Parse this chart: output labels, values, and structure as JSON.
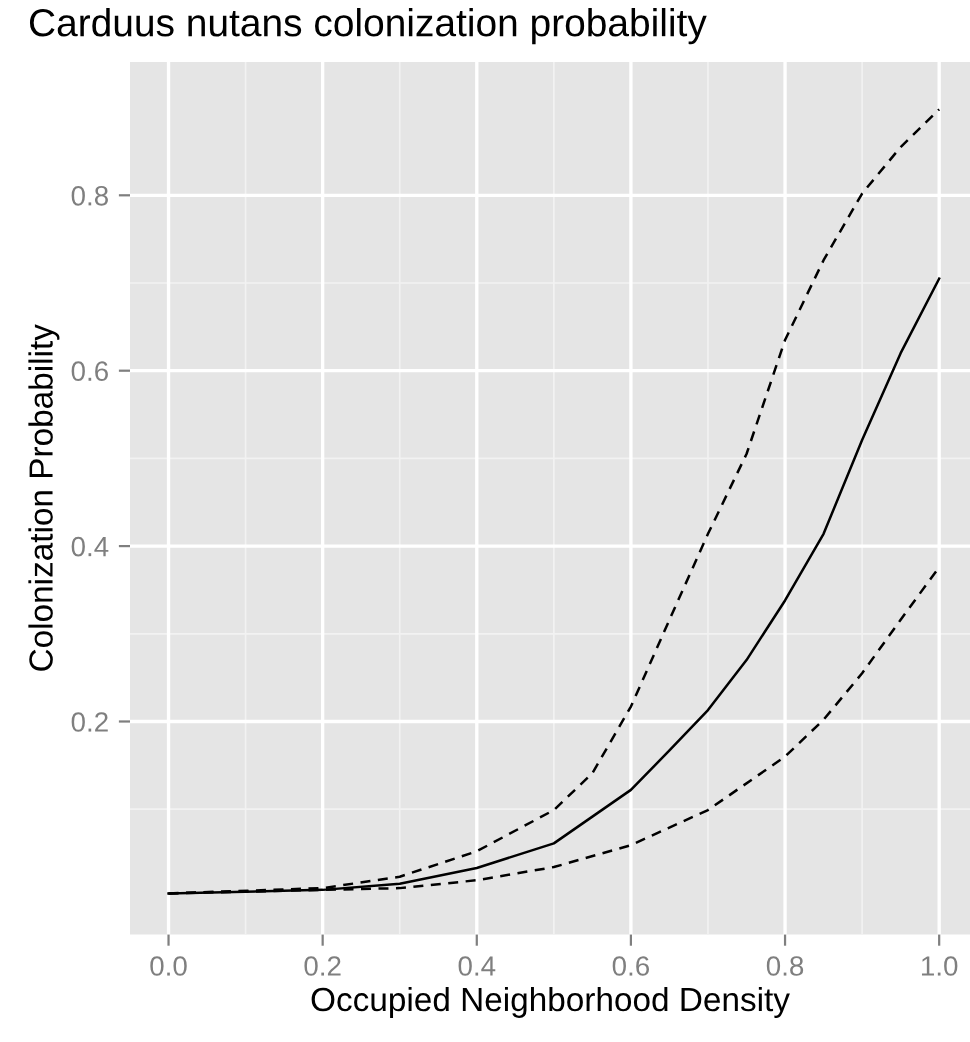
{
  "chart_data": {
    "type": "line",
    "title": "Carduus nutans colonization probability",
    "xlabel": "Occupied Neighborhood Density",
    "ylabel": "Colonization Probability",
    "xlim": [
      -0.05,
      1.04
    ],
    "ylim": [
      -0.043,
      0.952
    ],
    "xticks": [
      {
        "value": 0,
        "label": "0.0"
      },
      0.2,
      0.4,
      0.6,
      0.8,
      {
        "value": 1,
        "label": "1.0"
      }
    ],
    "yticks": [
      0.2,
      0.4,
      0.6,
      0.8
    ],
    "grid": true,
    "series": [
      {
        "color": "#000000",
        "line_style": "solid",
        "x": [
          0,
          0.2,
          0.3,
          0.4,
          0.5,
          0.6,
          0.65,
          0.7,
          0.75,
          0.8,
          0.85,
          0.9,
          0.95,
          1.0
        ],
        "values": [
          0.004,
          0.008,
          0.015,
          0.033,
          0.061,
          0.122,
          0.167,
          0.213,
          0.27,
          0.338,
          0.414,
          0.521,
          0.62,
          0.705
        ]
      },
      {
        "color": "#000000",
        "line_style": "dashed",
        "x": [
          0,
          0.2,
          0.3,
          0.4,
          0.5,
          0.55,
          0.6,
          0.65,
          0.7,
          0.75,
          0.8,
          0.85,
          0.9,
          0.95,
          1.0
        ],
        "values": [
          0.004,
          0.01,
          0.023,
          0.052,
          0.099,
          0.141,
          0.217,
          0.316,
          0.414,
          0.505,
          0.635,
          0.726,
          0.802,
          0.855,
          0.898
        ]
      },
      {
        "color": "#000000",
        "line_style": "dashed",
        "x": [
          0,
          0.2,
          0.3,
          0.4,
          0.5,
          0.6,
          0.7,
          0.8,
          0.85,
          0.9,
          0.95,
          1.0
        ],
        "values": [
          0.004,
          0.008,
          0.01,
          0.019,
          0.034,
          0.059,
          0.099,
          0.16,
          0.202,
          0.255,
          0.316,
          0.376
        ]
      }
    ]
  }
}
